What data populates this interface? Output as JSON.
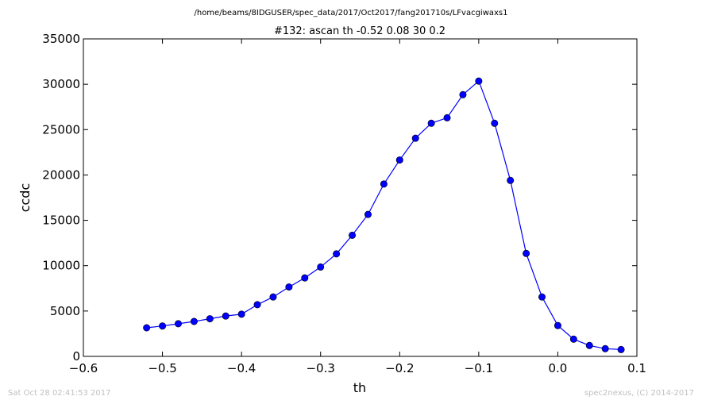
{
  "chart_data": {
    "type": "line",
    "suptitle": "/home/beams/8IDGUSER/spec_data/2017/Oct2017/fang201710s/LFvacgiwaxs1",
    "title": "#132: ascan  th -0.52 0.08  30 0.2",
    "xlabel": "th",
    "ylabel": "ccdc",
    "xlim": [
      -0.6,
      0.1
    ],
    "ylim": [
      0,
      35000
    ],
    "xticks": [
      "−0.6",
      "−0.5",
      "−0.4",
      "−0.3",
      "−0.2",
      "−0.1",
      "0.0",
      "0.1"
    ],
    "yticks": [
      "0",
      "5000",
      "10000",
      "15000",
      "20000",
      "25000",
      "30000",
      "35000"
    ],
    "grid": false,
    "marker": "circle",
    "series": [
      {
        "color": "#0000ff",
        "x": [
          -0.52,
          -0.5,
          -0.48,
          -0.46,
          -0.44,
          -0.42,
          -0.4,
          -0.38,
          -0.36,
          -0.34,
          -0.32,
          -0.3,
          -0.28,
          -0.26,
          -0.24,
          -0.22,
          -0.2,
          -0.18,
          -0.16,
          -0.14,
          -0.12,
          -0.1,
          -0.08,
          -0.06,
          -0.04,
          -0.02,
          0.0,
          0.02,
          0.04,
          0.06,
          0.08
        ],
        "y": [
          3150,
          3350,
          3600,
          3850,
          4150,
          4450,
          4650,
          5700,
          6550,
          7650,
          8650,
          9850,
          11300,
          13350,
          15650,
          19000,
          21650,
          24050,
          25700,
          26300,
          28850,
          30350,
          25700,
          19400,
          11350,
          6550,
          3400,
          1900,
          1200,
          850,
          750
        ]
      }
    ]
  },
  "footer": {
    "left": "Sat Oct 28 02:41:53 2017",
    "right": "spec2nexus, (C) 2014-2017"
  }
}
